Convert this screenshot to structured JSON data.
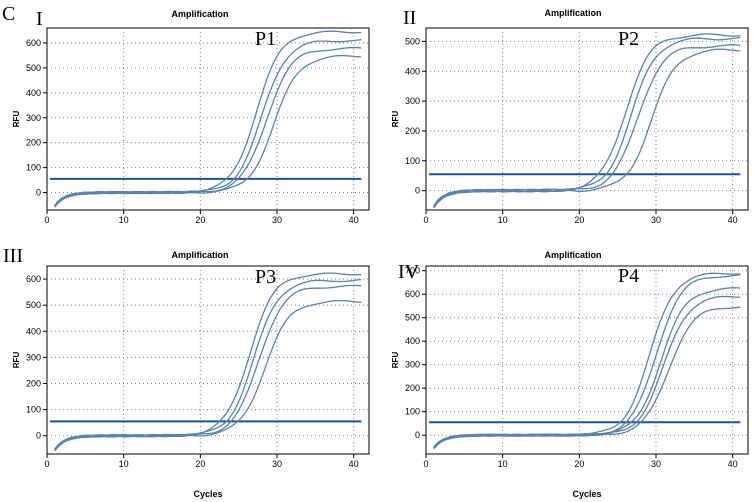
{
  "figure": {
    "panel_letter": "C",
    "colors": {
      "curve": "#5a82ad",
      "threshold": "#1e5591",
      "grid": "#7f7f7f",
      "axis": "#000000"
    }
  },
  "chart_data": [
    {
      "type": "line",
      "panel_label": "I",
      "sample_label": "P1",
      "title": "Amplification",
      "xlabel": "",
      "ylabel": "RFU",
      "xlim": [
        0,
        42
      ],
      "ylim": [
        -70,
        660
      ],
      "xticks": [
        0,
        10,
        20,
        30,
        40
      ],
      "yticks": [
        0,
        100,
        200,
        300,
        400,
        500,
        600
      ],
      "grid": true,
      "threshold": 55,
      "series": [
        {
          "name": "P1 curve 1",
          "plateau": 645,
          "ct": 27.3,
          "k": 0.62
        },
        {
          "name": "P1 curve 2",
          "plateau": 610,
          "ct": 28.0,
          "k": 0.62
        },
        {
          "name": "P1 curve 3",
          "plateau": 578,
          "ct": 28.6,
          "k": 0.62
        },
        {
          "name": "P1 curve 4",
          "plateau": 548,
          "ct": 29.6,
          "k": 0.62
        }
      ]
    },
    {
      "type": "line",
      "panel_label": "II",
      "sample_label": "P2",
      "title": "Amplification",
      "xlabel": "",
      "ylabel": "RFU",
      "xlim": [
        0,
        42
      ],
      "ylim": [
        -65,
        545
      ],
      "xticks": [
        0,
        10,
        20,
        30,
        40
      ],
      "yticks": [
        0,
        100,
        200,
        300,
        400,
        500
      ],
      "grid": true,
      "threshold": 55,
      "series": [
        {
          "name": "P2 curve 1",
          "plateau": 522,
          "ct": 26.0,
          "k": 0.62
        },
        {
          "name": "P2 curve 2",
          "plateau": 510,
          "ct": 26.8,
          "k": 0.62
        },
        {
          "name": "P2 curve 3",
          "plateau": 485,
          "ct": 27.6,
          "k": 0.62
        },
        {
          "name": "P2 curve 4",
          "plateau": 472,
          "ct": 29.4,
          "k": 0.62
        }
      ]
    },
    {
      "type": "line",
      "panel_label": "III",
      "sample_label": "P3",
      "title": "Amplification",
      "xlabel": "Cycles",
      "ylabel": "RFU",
      "xlim": [
        0,
        42
      ],
      "ylim": [
        -70,
        650
      ],
      "xticks": [
        0,
        10,
        20,
        30,
        40
      ],
      "yticks": [
        0,
        100,
        200,
        300,
        400,
        500,
        600
      ],
      "grid": true,
      "threshold": 55,
      "series": [
        {
          "name": "P3 curve 1",
          "plateau": 620,
          "ct": 26.4,
          "k": 0.62
        },
        {
          "name": "P3 curve 2",
          "plateau": 595,
          "ct": 27.0,
          "k": 0.62
        },
        {
          "name": "P3 curve 3",
          "plateau": 572,
          "ct": 27.6,
          "k": 0.62
        },
        {
          "name": "P3 curve 4",
          "plateau": 515,
          "ct": 28.4,
          "k": 0.62
        }
      ]
    },
    {
      "type": "line",
      "panel_label": "IV",
      "sample_label": "P4",
      "title": "Amplification",
      "xlabel": "Cycles",
      "ylabel": "RFU",
      "xlim": [
        0,
        42
      ],
      "ylim": [
        -80,
        720
      ],
      "xticks": [
        0,
        10,
        20,
        30,
        40
      ],
      "yticks": [
        0,
        100,
        200,
        300,
        400,
        500,
        600,
        700
      ],
      "grid": true,
      "threshold": 55,
      "series": [
        {
          "name": "P4 curve 1",
          "plateau": 690,
          "ct": 29.2,
          "k": 0.62
        },
        {
          "name": "P4 curve 2",
          "plateau": 680,
          "ct": 30.0,
          "k": 0.62
        },
        {
          "name": "P4 curve 3",
          "plateau": 625,
          "ct": 30.6,
          "k": 0.62
        },
        {
          "name": "P4 curve 4",
          "plateau": 592,
          "ct": 31.0,
          "k": 0.62
        },
        {
          "name": "P4 curve 5",
          "plateau": 548,
          "ct": 31.6,
          "k": 0.62
        }
      ]
    }
  ]
}
